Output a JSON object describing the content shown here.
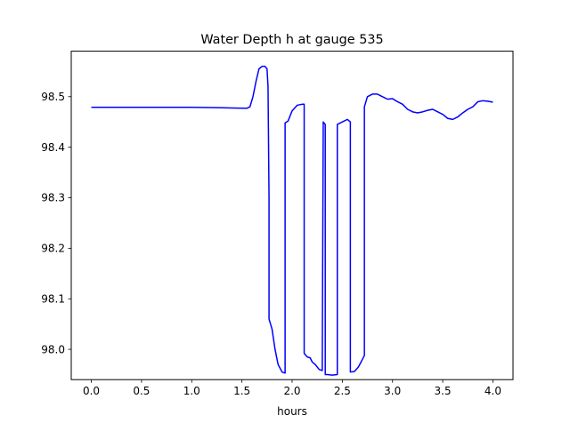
{
  "chart_data": {
    "type": "line",
    "title": "Water Depth h at gauge 535",
    "xlabel": "hours",
    "ylabel": "",
    "xlim": [
      -0.2,
      4.2
    ],
    "ylim": [
      97.94,
      98.59
    ],
    "xticks": [
      0.0,
      0.5,
      1.0,
      1.5,
      2.0,
      2.5,
      3.0,
      3.5,
      4.0
    ],
    "xtick_labels": [
      "0.0",
      "0.5",
      "1.0",
      "1.5",
      "2.0",
      "2.5",
      "3.0",
      "3.5",
      "4.0"
    ],
    "yticks": [
      98.0,
      98.1,
      98.2,
      98.3,
      98.4,
      98.5
    ],
    "ytick_labels": [
      "98.0",
      "98.1",
      "98.2",
      "98.3",
      "98.4",
      "98.5"
    ],
    "grid": false,
    "series": [
      {
        "color": "#0000ff",
        "x": [
          0.0,
          0.5,
          1.0,
          1.3,
          1.55,
          1.58,
          1.61,
          1.64,
          1.67,
          1.7,
          1.73,
          1.75,
          1.76,
          1.77,
          1.77,
          1.8,
          1.83,
          1.86,
          1.9,
          1.93,
          1.93,
          1.96,
          2.0,
          2.05,
          2.1,
          2.12,
          2.12,
          2.15,
          2.18,
          2.2,
          2.23,
          2.27,
          2.3,
          2.31,
          2.33,
          2.33,
          2.35,
          2.4,
          2.45,
          2.45,
          2.5,
          2.55,
          2.58,
          2.58,
          2.62,
          2.66,
          2.7,
          2.72,
          2.72,
          2.75,
          2.8,
          2.85,
          2.9,
          2.95,
          3.0,
          3.05,
          3.1,
          3.15,
          3.2,
          3.25,
          3.3,
          3.35,
          3.4,
          3.45,
          3.5,
          3.55,
          3.6,
          3.65,
          3.7,
          3.75,
          3.8,
          3.85,
          3.9,
          3.95,
          4.0
        ],
        "y": [
          98.479,
          98.479,
          98.479,
          98.478,
          98.477,
          98.48,
          98.5,
          98.53,
          98.555,
          98.56,
          98.56,
          98.555,
          98.52,
          98.3,
          98.06,
          98.04,
          98.0,
          97.97,
          97.955,
          97.953,
          98.448,
          98.452,
          98.472,
          98.483,
          98.485,
          98.485,
          97.992,
          97.985,
          97.983,
          97.975,
          97.97,
          97.96,
          97.958,
          98.45,
          98.445,
          97.95,
          97.95,
          97.949,
          97.95,
          98.445,
          98.45,
          98.455,
          98.45,
          97.955,
          97.956,
          97.965,
          97.98,
          97.988,
          98.48,
          98.5,
          98.505,
          98.505,
          98.5,
          98.495,
          98.496,
          98.49,
          98.485,
          98.475,
          98.47,
          98.468,
          98.47,
          98.473,
          98.475,
          98.47,
          98.465,
          98.457,
          98.455,
          98.46,
          98.468,
          98.475,
          98.48,
          98.49,
          98.492,
          98.491,
          98.489
        ]
      }
    ]
  }
}
